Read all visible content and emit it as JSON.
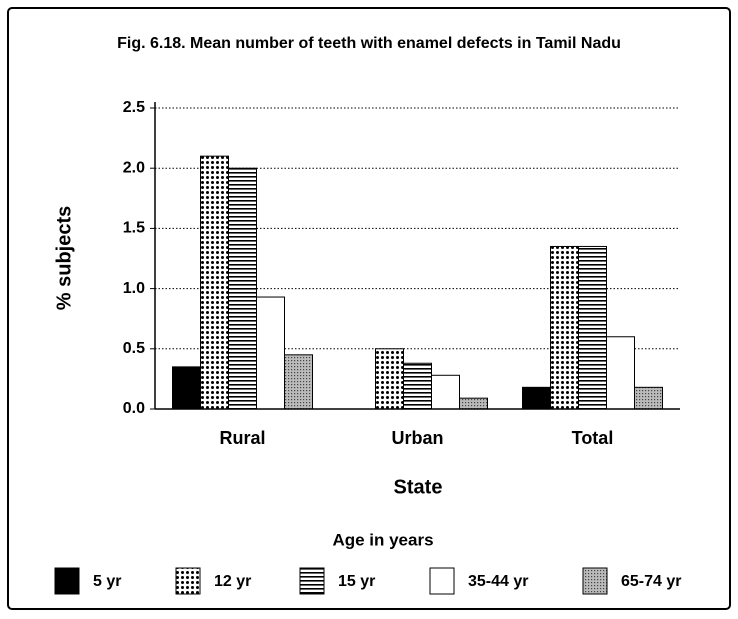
{
  "chart_data": {
    "type": "bar",
    "title": "Fig. 6.18. Mean number of teeth with enamel defects in Tamil Nadu",
    "x_label": "State",
    "y_label": "% subjects",
    "legend_title": "Age in years",
    "categories": [
      "Rural",
      "Urban",
      "Total"
    ],
    "series": [
      {
        "name": "5 yr",
        "color": "#000000",
        "pattern": "solid",
        "values": [
          0.35,
          0,
          0.18
        ]
      },
      {
        "name": "12 yr",
        "color": "#000000",
        "pattern": "dots",
        "values": [
          2.1,
          0.5,
          1.35
        ]
      },
      {
        "name": "15 yr",
        "color": "#000000",
        "pattern": "hstripes",
        "values": [
          2.0,
          0.38,
          1.35
        ]
      },
      {
        "name": "35-44 yr",
        "color": "#ffffff",
        "pattern": "none",
        "values": [
          0.93,
          0.28,
          0.6
        ]
      },
      {
        "name": "65-74 yr",
        "color": "#888888",
        "pattern": "stipple",
        "values": [
          0.45,
          0.09,
          0.18
        ]
      }
    ],
    "ylim": [
      0,
      2.5
    ],
    "yticks": [
      {
        "value": 0,
        "label": "0.0"
      },
      0.5,
      {
        "value": 1,
        "label": "1.0"
      },
      1.5,
      {
        "value": 2,
        "label": "2.0"
      },
      2.5
    ],
    "grid": true,
    "legend": "bottom"
  }
}
